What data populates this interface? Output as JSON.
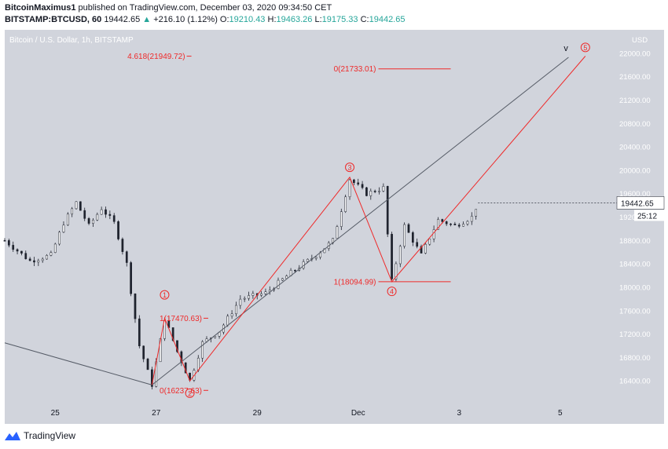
{
  "header": {
    "author": "BitcoinMaximus1",
    "published_text": "published on TradingView.com, December 03, 2020 09:34:50 CET",
    "symbol": "BITSTAMP:BTCUSD, 60",
    "last": "19442.65",
    "change": "+216.10 (1.12%)",
    "open_label": "O:",
    "open": "19210.43",
    "high_label": "H:",
    "high": "19463.26",
    "low_label": "L:",
    "low": "19175.33",
    "close_label": "C:",
    "close": "19442.65"
  },
  "footer": {
    "brand": "TradingView"
  },
  "colors": {
    "background": "#d1d4dc",
    "wave": "#ef2a2a",
    "line": "#2a2e39",
    "up": "#26a69a"
  },
  "chart_data": {
    "type": "line",
    "title": "Bitcoin / U.S. Dollar, 1h, BITSTAMP",
    "price_axis": {
      "currency": "USD",
      "range": [
        16000,
        22400
      ],
      "ticks": [
        16400,
        16800,
        17200,
        17600,
        18000,
        18400,
        18800,
        19200,
        19600,
        20000,
        20400,
        20800,
        21200,
        21600,
        22000
      ]
    },
    "time_axis": {
      "tick_labels": [
        "25",
        "27",
        "29",
        "Dec",
        "3",
        "5"
      ]
    },
    "last_price_label": "19442.65",
    "countdown_label": "25:12",
    "price_path": [
      {
        "x": "Nov 24 00:00",
        "y": 18800
      },
      {
        "x": "Nov 24 12:00",
        "y": 18450
      },
      {
        "x": "Nov 24 22:00",
        "y": 18550
      },
      {
        "x": "Nov 25 04:00",
        "y": 19100
      },
      {
        "x": "Nov 25 10:00",
        "y": 19450
      },
      {
        "x": "Nov 25 16:00",
        "y": 19050
      },
      {
        "x": "Nov 25 22:00",
        "y": 19350
      },
      {
        "x": "Nov 26 04:00",
        "y": 19100
      },
      {
        "x": "Nov 26 10:00",
        "y": 18400
      },
      {
        "x": "Nov 26 16:00",
        "y": 17000
      },
      {
        "x": "Nov 26 22:00",
        "y": 16334
      },
      {
        "x": "Nov 27 04:00",
        "y": 17470
      },
      {
        "x": "Nov 27 10:00",
        "y": 16900
      },
      {
        "x": "Nov 27 16:00",
        "y": 16400
      },
      {
        "x": "Nov 27 22:00",
        "y": 17050
      },
      {
        "x": "Nov 28 06:00",
        "y": 17250
      },
      {
        "x": "Nov 28 16:00",
        "y": 17800
      },
      {
        "x": "Nov 29 04:00",
        "y": 17900
      },
      {
        "x": "Nov 29 16:00",
        "y": 18250
      },
      {
        "x": "Nov 30 04:00",
        "y": 18550
      },
      {
        "x": "Nov 30 12:00",
        "y": 18800
      },
      {
        "x": "Nov 30 20:00",
        "y": 19850
      },
      {
        "x": "Dec 01 04:00",
        "y": 19600
      },
      {
        "x": "Dec 01 12:00",
        "y": 19700
      },
      {
        "x": "Dec 01 16:00",
        "y": 18100
      },
      {
        "x": "Dec 01 22:00",
        "y": 19050
      },
      {
        "x": "Dec 02 06:00",
        "y": 18550
      },
      {
        "x": "Dec 02 14:00",
        "y": 19150
      },
      {
        "x": "Dec 02 22:00",
        "y": 19050
      },
      {
        "x": "Dec 03 06:00",
        "y": 19200
      },
      {
        "x": "Dec 03 09:00",
        "y": 19442
      }
    ],
    "wave_path": [
      {
        "x": "Nov 26 22:00",
        "y": 16334
      },
      {
        "x": "Nov 27 04:00",
        "y": 17470
      },
      {
        "x": "Nov 27 16:00",
        "y": 16400
      },
      {
        "x": "Nov 30 20:00",
        "y": 19880
      },
      {
        "x": "Dec 01 16:00",
        "y": 18095
      },
      {
        "x": "Dec 05 12:00",
        "y": 21950
      }
    ],
    "wave_labels": [
      {
        "label": "1",
        "x": "Nov 27 04:00",
        "y": 17870
      },
      {
        "label": "2",
        "x": "Nov 27 16:00",
        "y": 16190
      },
      {
        "label": "3",
        "x": "Nov 30 20:00",
        "y": 20050
      },
      {
        "label": "4",
        "x": "Dec 01 16:00",
        "y": 17930
      },
      {
        "label": "5",
        "x": "Dec 05 12:00",
        "y": 22100
      }
    ],
    "fib_levels": [
      {
        "text": "4.618(21949.72)",
        "y": 21949.72,
        "x_end": "Nov 27 16:00"
      },
      {
        "text": "0(21733.01)",
        "y": 21733.01,
        "x_end": "Dec 02 20:00"
      },
      {
        "text": "1(17470.63)",
        "y": 17470.63,
        "x_end": "Nov 28 00:00"
      },
      {
        "text": "0(16237.63)",
        "y": 16237.63,
        "x_end": "Nov 28 00:00"
      },
      {
        "text": "1(18094.99)",
        "y": 18094.99,
        "x_end": "Dec 02 20:00"
      }
    ],
    "trendlines": [
      {
        "name": "lower",
        "points": [
          {
            "x": "Nov 24 00:00",
            "y": 17050
          },
          {
            "x": "Nov 26 22:00",
            "y": 16330
          }
        ]
      },
      {
        "name": "upper",
        "points": [
          {
            "x": "Nov 26 22:00",
            "y": 16330
          },
          {
            "x": "Dec 05 04:00",
            "y": 21930
          }
        ]
      }
    ],
    "channel_v_label": "v",
    "grid": false
  }
}
